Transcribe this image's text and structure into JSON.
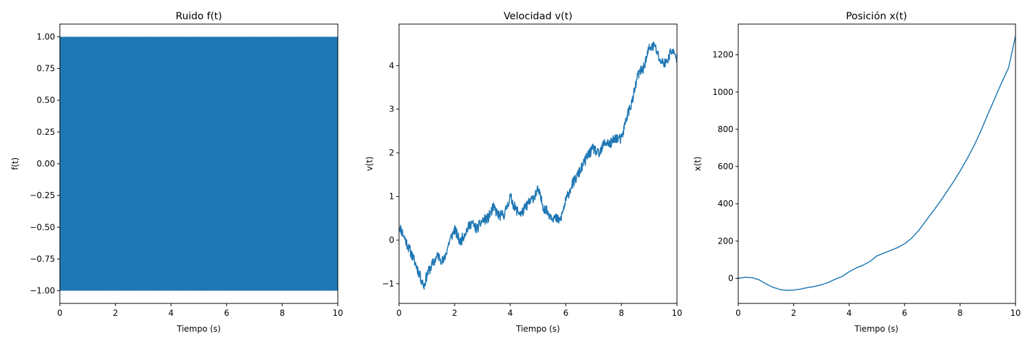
{
  "series_color": "#1f77b4",
  "chart_data": [
    {
      "type": "line",
      "title": "Ruido f(t)",
      "xlabel": "Tiempo (s)",
      "ylabel": "f(t)",
      "xlim": [
        0,
        10
      ],
      "ylim": [
        -1.1,
        1.1
      ],
      "xticks": [
        0,
        2,
        4,
        6,
        8,
        10
      ],
      "xtick_labels": [
        "0",
        "2",
        "4",
        "6",
        "8",
        "10"
      ],
      "yticks": [
        -1.0,
        -0.75,
        -0.5,
        -0.25,
        0.0,
        0.25,
        0.5,
        0.75,
        1.0
      ],
      "ytick_labels": [
        "−1.00",
        "−0.75",
        "−0.50",
        "−0.25",
        "0.00",
        "0.25",
        "0.50",
        "0.75",
        "1.00"
      ],
      "grid": false,
      "noise_band": {
        "min": -1.0,
        "max": 1.0
      },
      "x": [
        0,
        1,
        2,
        3,
        4,
        5,
        6,
        7,
        8,
        9,
        10
      ],
      "y_upper": [
        0.99,
        0.99,
        0.985,
        0.99,
        0.99,
        0.99,
        0.985,
        0.99,
        0.99,
        0.99,
        0.99
      ],
      "y_lower": [
        -0.99,
        -0.99,
        -0.985,
        -0.99,
        -0.99,
        -0.99,
        -0.985,
        -0.99,
        -0.99,
        -0.99,
        -0.99
      ]
    },
    {
      "type": "line",
      "title": "Velocidad v(t)",
      "xlabel": "Tiempo (s)",
      "ylabel": "v(t)",
      "xlim": [
        0,
        10
      ],
      "ylim": [
        -1.45,
        4.95
      ],
      "xticks": [
        0,
        2,
        4,
        6,
        8,
        10
      ],
      "xtick_labels": [
        "0",
        "2",
        "4",
        "6",
        "8",
        "10"
      ],
      "yticks": [
        -1,
        0,
        1,
        2,
        3,
        4
      ],
      "ytick_labels": [
        "−1",
        "0",
        "1",
        "2",
        "3",
        "4"
      ],
      "grid": false,
      "x": [
        0,
        0.2,
        0.4,
        0.6,
        0.8,
        0.9,
        1.0,
        1.2,
        1.4,
        1.6,
        1.8,
        2.0,
        2.2,
        2.4,
        2.6,
        2.8,
        3.0,
        3.2,
        3.4,
        3.6,
        3.8,
        4.0,
        4.2,
        4.4,
        4.6,
        4.8,
        5.0,
        5.2,
        5.4,
        5.6,
        5.8,
        6.0,
        6.2,
        6.4,
        6.6,
        6.8,
        7.0,
        7.2,
        7.4,
        7.6,
        7.8,
        8.0,
        8.2,
        8.4,
        8.6,
        8.8,
        9.0,
        9.2,
        9.4,
        9.6,
        9.8,
        10.0
      ],
      "y": [
        0.35,
        0.05,
        -0.25,
        -0.55,
        -0.9,
        -1.05,
        -0.8,
        -0.55,
        -0.35,
        -0.5,
        -0.05,
        0.25,
        -0.05,
        0.2,
        0.4,
        0.25,
        0.45,
        0.5,
        0.75,
        0.55,
        0.6,
        1.0,
        0.7,
        0.6,
        0.8,
        0.95,
        1.15,
        0.75,
        0.6,
        0.5,
        0.45,
        0.9,
        1.25,
        1.45,
        1.7,
        1.95,
        2.1,
        1.95,
        2.25,
        2.2,
        2.35,
        2.3,
        2.85,
        3.2,
        3.8,
        3.95,
        4.4,
        4.45,
        4.1,
        4.05,
        4.35,
        4.15
      ],
      "noise_amplitude": 0.12
    },
    {
      "type": "line",
      "title": "Posición x(t)",
      "xlabel": "Tiempo (s)",
      "ylabel": "x(t)",
      "xlim": [
        0,
        10
      ],
      "ylim": [
        -135,
        1365
      ],
      "xticks": [
        0,
        2,
        4,
        6,
        8,
        10
      ],
      "xtick_labels": [
        "0",
        "2",
        "4",
        "6",
        "8",
        "10"
      ],
      "yticks": [
        0,
        200,
        400,
        600,
        800,
        1000,
        1200
      ],
      "ytick_labels": [
        "0",
        "200",
        "400",
        "600",
        "800",
        "1000",
        "1200"
      ],
      "grid": false,
      "x": [
        0,
        0.25,
        0.5,
        0.75,
        1.0,
        1.25,
        1.5,
        1.75,
        2.0,
        2.25,
        2.5,
        2.75,
        3.0,
        3.25,
        3.5,
        3.75,
        4.0,
        4.25,
        4.5,
        4.75,
        5.0,
        5.25,
        5.5,
        5.75,
        6.0,
        6.25,
        6.5,
        6.75,
        7.0,
        7.25,
        7.5,
        7.75,
        8.0,
        8.25,
        8.5,
        8.75,
        9.0,
        9.25,
        9.5,
        9.75,
        10.0
      ],
      "y": [
        0,
        5,
        3,
        -8,
        -30,
        -48,
        -60,
        -65,
        -63,
        -58,
        -50,
        -44,
        -35,
        -22,
        -5,
        10,
        35,
        55,
        70,
        90,
        120,
        135,
        150,
        165,
        185,
        215,
        255,
        305,
        355,
        405,
        460,
        515,
        575,
        640,
        710,
        790,
        880,
        965,
        1050,
        1130,
        1300
      ]
    }
  ]
}
